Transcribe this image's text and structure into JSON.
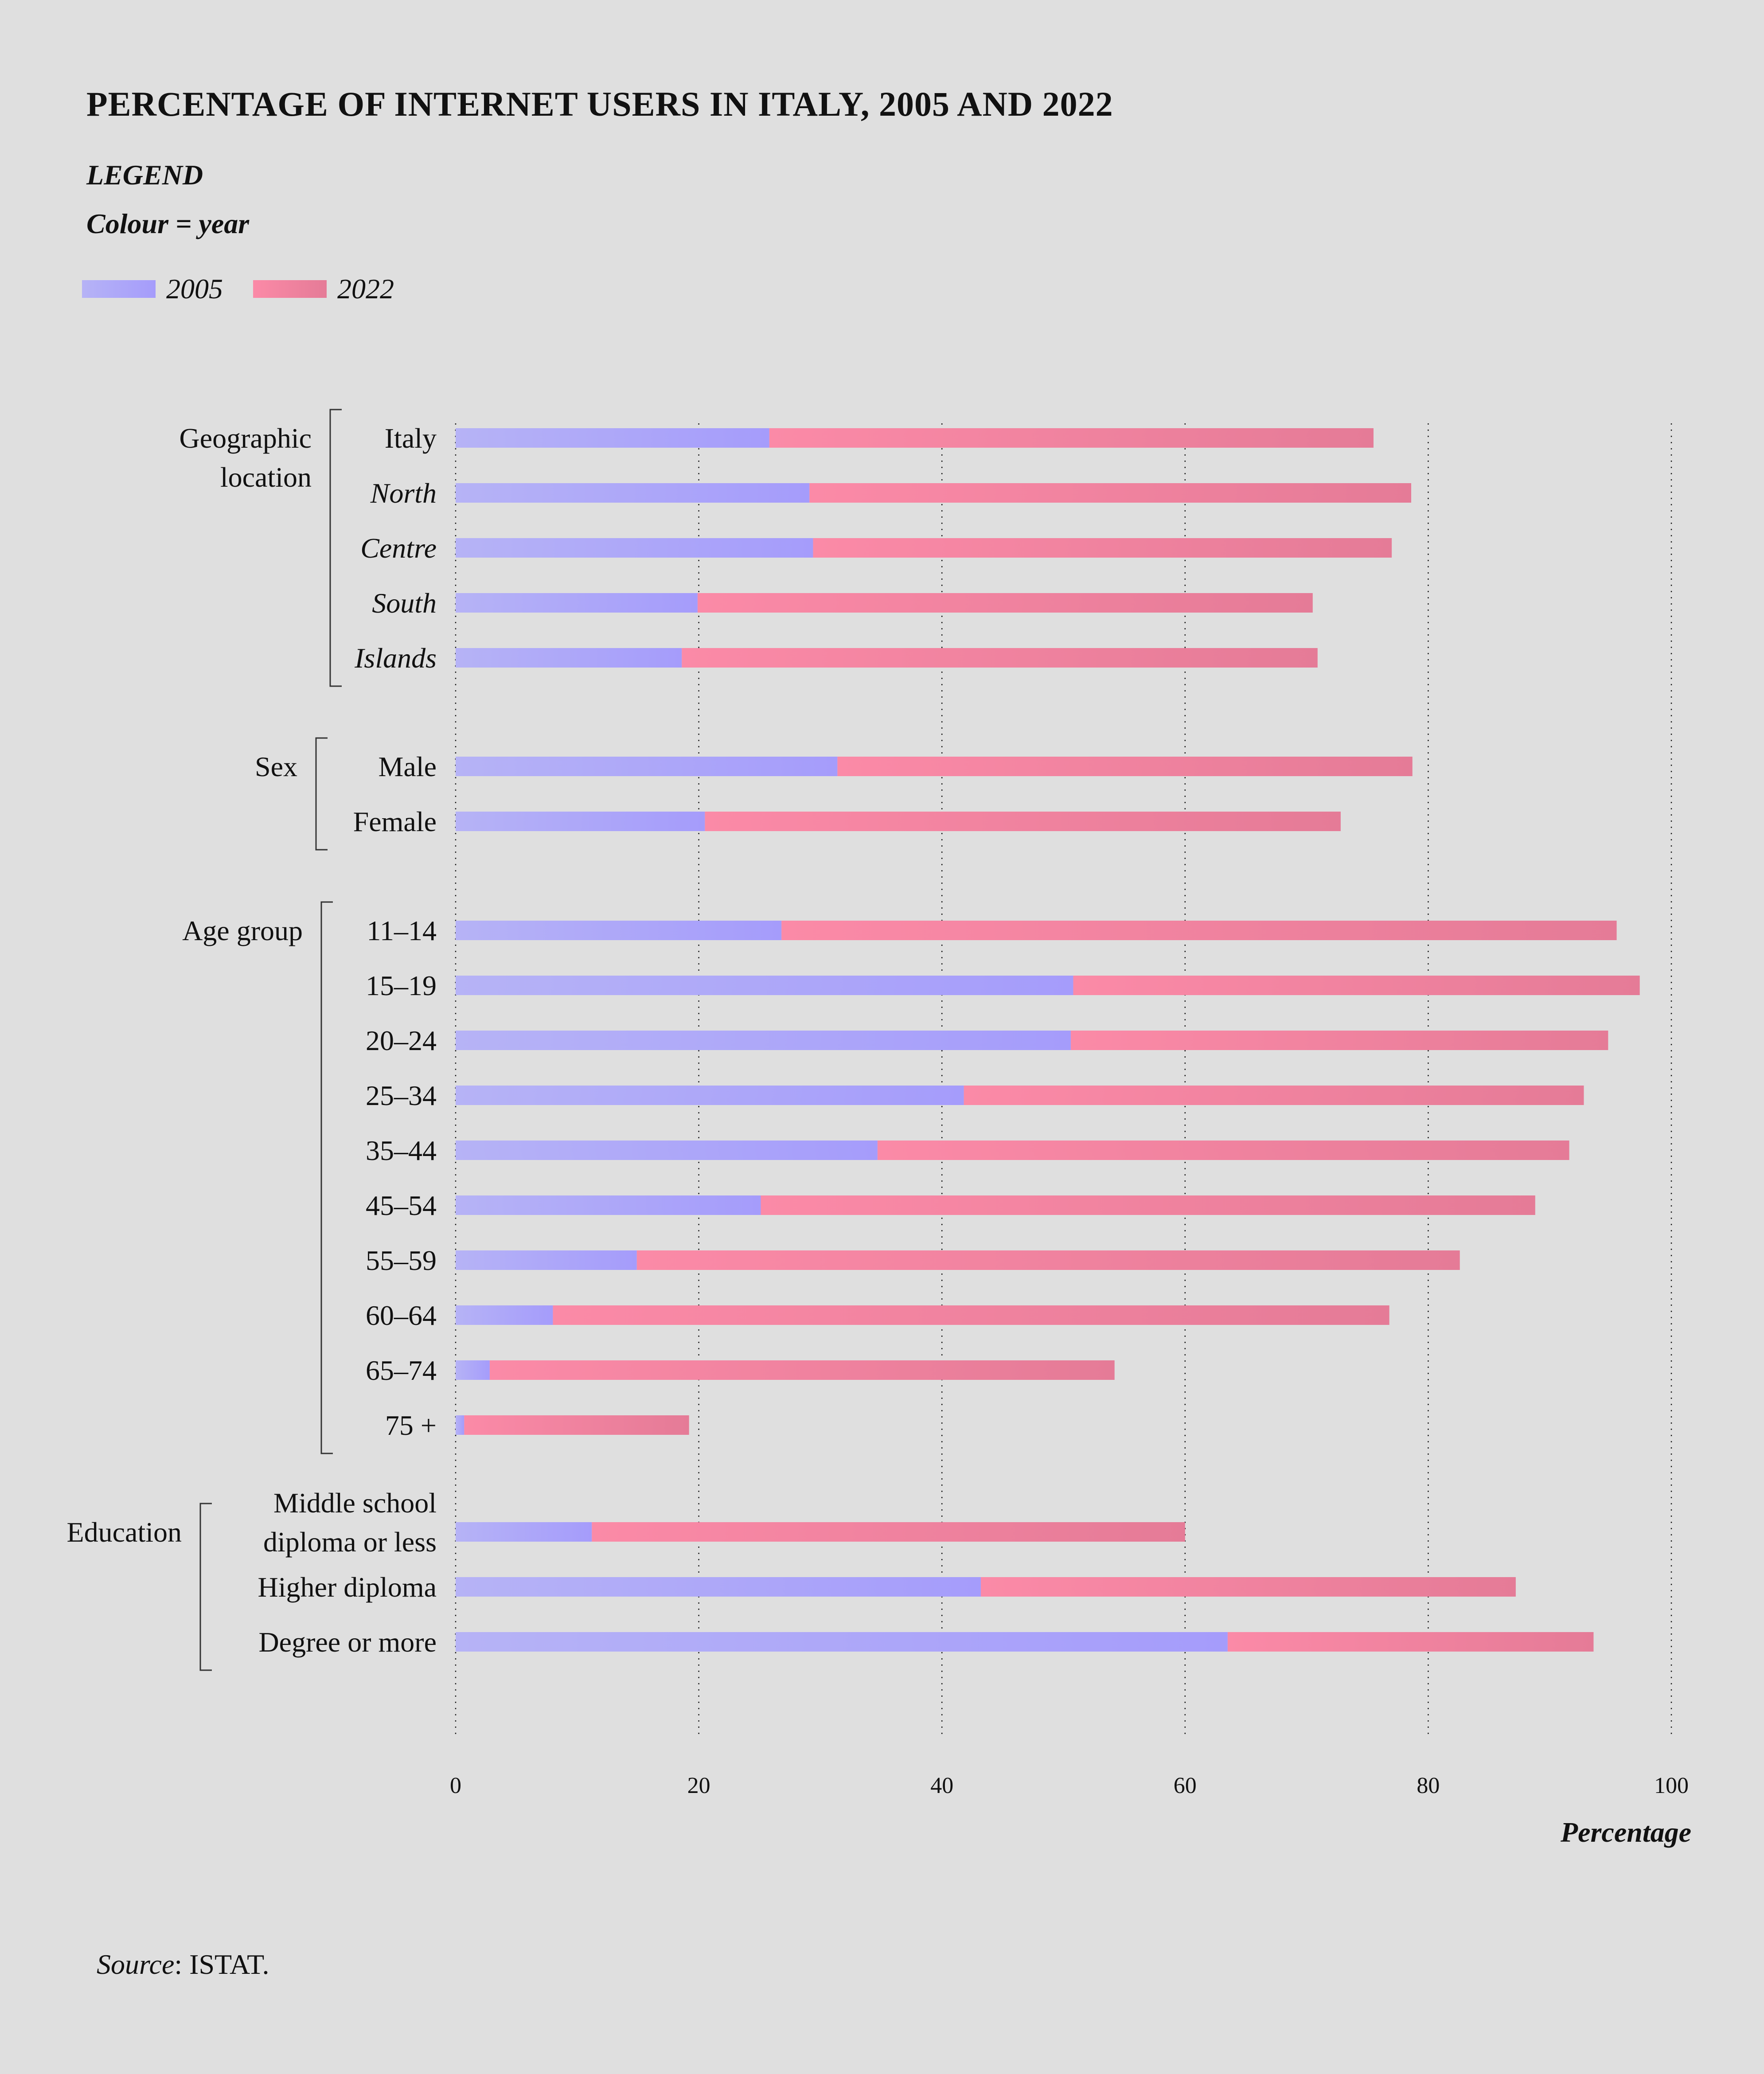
{
  "title": "PERCENTAGE OF INTERNET USERS IN ITALY, 2005 AND 2022",
  "legend": {
    "heading": "LEGEND",
    "subheading": "Colour = year",
    "items": [
      {
        "label": "2005",
        "color_start": "#b6b3f6",
        "color_end": "#a59cfb"
      },
      {
        "label": "2022",
        "color_start": "#fb8aa7",
        "color_end": "#e57b97"
      }
    ]
  },
  "source": {
    "label": "Source",
    "value": ": ISTAT."
  },
  "chart_data": {
    "type": "bar",
    "orientation": "horizontal",
    "title": "PERCENTAGE OF INTERNET USERS IN ITALY, 2005 AND 2022",
    "xlabel": "Percentage",
    "ylabel": "",
    "xlim": [
      0,
      100
    ],
    "xticks": [
      0,
      20,
      40,
      60,
      80,
      100
    ],
    "grid": "vertical dotted",
    "legend_position": "top-left",
    "groups": [
      {
        "name": "Geographic location",
        "name_lines": [
          "Geographic",
          "location"
        ],
        "categories": [
          {
            "label": "Italy",
            "italic": false
          },
          {
            "label": "North",
            "italic": true
          },
          {
            "label": "Centre",
            "italic": true
          },
          {
            "label": "South",
            "italic": true
          },
          {
            "label": "Islands",
            "italic": true
          }
        ]
      },
      {
        "name": "Sex",
        "name_lines": [
          "Sex"
        ],
        "categories": [
          {
            "label": "Male",
            "italic": false
          },
          {
            "label": "Female",
            "italic": false
          }
        ]
      },
      {
        "name": "Age group",
        "name_lines": [
          "Age group"
        ],
        "categories": [
          {
            "label": "11–14",
            "italic": false
          },
          {
            "label": "15–19",
            "italic": false
          },
          {
            "label": "20–24",
            "italic": false
          },
          {
            "label": "25–34",
            "italic": false
          },
          {
            "label": "35–44",
            "italic": false
          },
          {
            "label": "45–54",
            "italic": false
          },
          {
            "label": "55–59",
            "italic": false
          },
          {
            "label": "60–64",
            "italic": false
          },
          {
            "label": "65–74",
            "italic": false
          },
          {
            "label": "75 +",
            "italic": false
          }
        ]
      },
      {
        "name": "Education",
        "name_lines": [
          "Education"
        ],
        "categories": [
          {
            "label": "Middle school diploma or less",
            "lines": [
              "Middle school",
              "diploma or less"
            ],
            "italic": false
          },
          {
            "label": "Higher diploma",
            "italic": false
          },
          {
            "label": "Degree or more",
            "italic": false
          }
        ]
      }
    ],
    "series": [
      {
        "name": "2005",
        "values": [
          25.8,
          29.1,
          29.4,
          19.9,
          18.6,
          31.4,
          20.5,
          26.8,
          50.8,
          50.6,
          41.8,
          34.7,
          25.1,
          14.9,
          8.0,
          2.8,
          0.7,
          11.2,
          43.2,
          63.5
        ]
      },
      {
        "name": "2022",
        "values": [
          75.5,
          78.6,
          77.0,
          70.5,
          70.9,
          78.7,
          72.8,
          95.5,
          97.4,
          94.8,
          92.8,
          91.6,
          88.8,
          82.6,
          76.8,
          54.2,
          19.2,
          60.0,
          87.2,
          93.6
        ]
      }
    ]
  }
}
